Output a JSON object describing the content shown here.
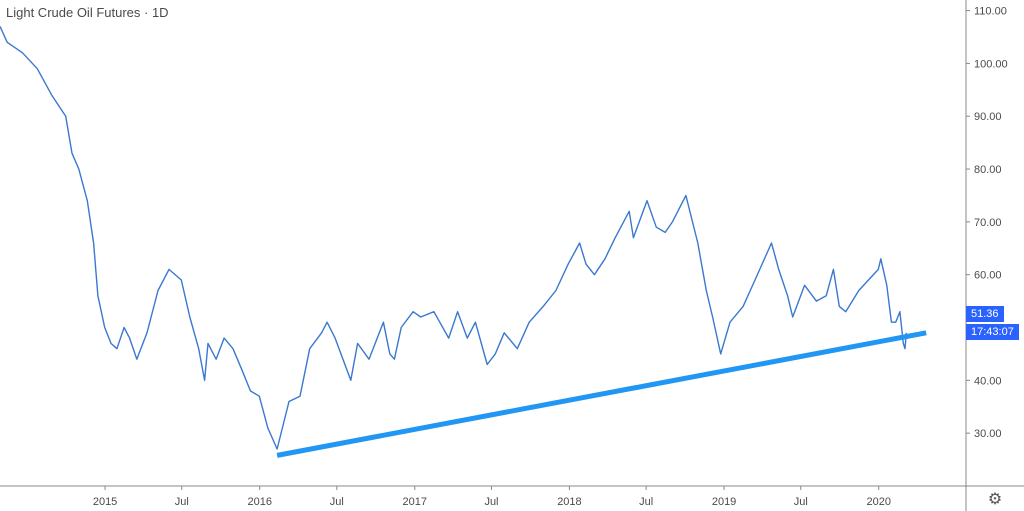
{
  "colors": {
    "price_line": "#3a78d0",
    "trendline": "#2196f3",
    "badge_bg": "#2962ff",
    "axis": "#888888",
    "text": "#4a4a4a"
  },
  "icons": {
    "settings": "gear-icon"
  },
  "chart_data": {
    "type": "line",
    "title": "Light Crude Oil Futures · 1D",
    "xlabel": "",
    "ylabel": "",
    "x_range": [
      "2014-04-28",
      "2020-07-25"
    ],
    "ylim": [
      20,
      112
    ],
    "y_ticks": [
      30,
      40,
      50,
      60,
      70,
      80,
      90,
      100,
      110
    ],
    "y_tick_labels": [
      "30.00",
      "40.00",
      "50.00",
      "60.00",
      "70.00",
      "80.00",
      "90.00",
      "100.00",
      "110.00"
    ],
    "x_ticks": [
      "2015-01-01",
      "2015-07-01",
      "2016-01-01",
      "2016-07-01",
      "2017-01-01",
      "2017-07-01",
      "2018-01-01",
      "2018-07-01",
      "2019-01-01",
      "2019-07-01",
      "2020-01-01"
    ],
    "x_tick_labels": [
      "2015",
      "Jul",
      "2016",
      "Jul",
      "2017",
      "Jul",
      "2018",
      "Jul",
      "2019",
      "Jul",
      "2020"
    ],
    "grid": false,
    "legend": "none",
    "last_price_label": "51.36",
    "countdown_label": "17:43:07",
    "series": [
      {
        "x": [
          "2014-04-28",
          "2014-05-15",
          "2014-06-20",
          "2014-07-25",
          "2014-08-28",
          "2014-09-30",
          "2014-10-15",
          "2014-10-31",
          "2014-11-20",
          "2014-12-05",
          "2014-12-15",
          "2014-12-31",
          "2015-01-15",
          "2015-01-29",
          "2015-02-15",
          "2015-02-28",
          "2015-03-17",
          "2015-04-10",
          "2015-05-06",
          "2015-06-01",
          "2015-06-30",
          "2015-07-20",
          "2015-08-10",
          "2015-08-24",
          "2015-09-01",
          "2015-09-20",
          "2015-10-09",
          "2015-10-30",
          "2015-11-20",
          "2015-12-10",
          "2015-12-31",
          "2016-01-20",
          "2016-02-11",
          "2016-03-10",
          "2016-04-05",
          "2016-04-28",
          "2016-05-26",
          "2016-06-08",
          "2016-06-27",
          "2016-07-20",
          "2016-08-03",
          "2016-08-19",
          "2016-09-15",
          "2016-10-19",
          "2016-11-03",
          "2016-11-14",
          "2016-11-30",
          "2016-12-28",
          "2017-01-15",
          "2017-02-15",
          "2017-03-22",
          "2017-04-12",
          "2017-05-05",
          "2017-05-24",
          "2017-06-21",
          "2017-07-10",
          "2017-07-31",
          "2017-08-31",
          "2017-09-28",
          "2017-10-31",
          "2017-11-30",
          "2017-12-29",
          "2018-01-25",
          "2018-02-09",
          "2018-03-01",
          "2018-03-26",
          "2018-04-19",
          "2018-05-22",
          "2018-06-01",
          "2018-07-03",
          "2018-07-25",
          "2018-08-15",
          "2018-09-01",
          "2018-10-03",
          "2018-10-31",
          "2018-11-20",
          "2018-12-05",
          "2018-12-24",
          "2019-01-15",
          "2019-02-15",
          "2019-03-15",
          "2019-04-23",
          "2019-05-10",
          "2019-05-31",
          "2019-06-12",
          "2019-07-10",
          "2019-08-07",
          "2019-08-30",
          "2019-09-16",
          "2019-09-30",
          "2019-10-15",
          "2019-11-15",
          "2019-12-31",
          "2020-01-06",
          "2020-01-20",
          "2020-01-31",
          "2020-02-10",
          "2020-02-20",
          "2020-02-28",
          "2020-03-03",
          "2020-03-06"
        ],
        "y": [
          107,
          104,
          102,
          99,
          94,
          90,
          83,
          80,
          74,
          66,
          56,
          50,
          47,
          46,
          50,
          48,
          44,
          49,
          57,
          61,
          59,
          52,
          46,
          40,
          47,
          44,
          48,
          46,
          42,
          38,
          37,
          31,
          27,
          36,
          37,
          46,
          49,
          51,
          48,
          43,
          40,
          47,
          44,
          51,
          45,
          44,
          50,
          53,
          52,
          53,
          48,
          53,
          48,
          51,
          43,
          45,
          49,
          46,
          51,
          54,
          57,
          62,
          66,
          62,
          60,
          63,
          67,
          72,
          67,
          74,
          69,
          68,
          70,
          75,
          66,
          57,
          52,
          45,
          51,
          54,
          59,
          66,
          61,
          56,
          52,
          58,
          55,
          56,
          61,
          54,
          53,
          57,
          61,
          63,
          58,
          51,
          51,
          53,
          47,
          46,
          49
        ]
      },
      {
        "name": "",
        "x": [
          "2016-02-11",
          "2020-04-22"
        ],
        "y": [
          25.8,
          49.0
        ]
      }
    ]
  }
}
